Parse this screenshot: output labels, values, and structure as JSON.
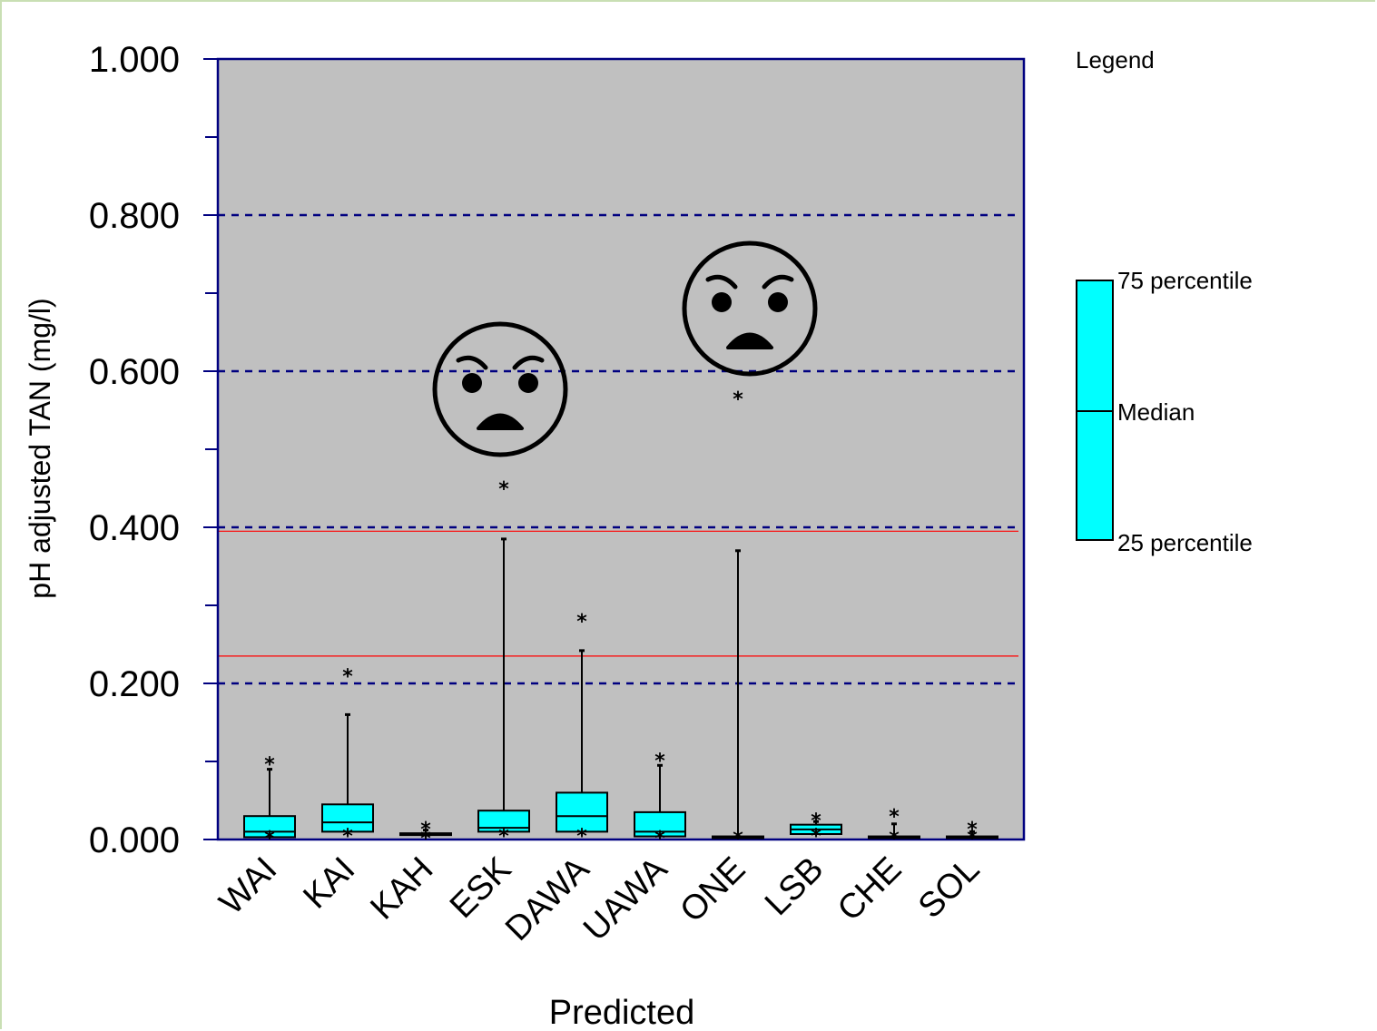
{
  "chart_data": {
    "type": "box",
    "title": "",
    "xlabel": "Predicted",
    "ylabel": "pH adjusted TAN (mg/l)",
    "ylim": [
      0,
      1.0
    ],
    "y_ticks": [
      "0.000",
      "0.200",
      "0.400",
      "0.600",
      "0.800",
      "1.000"
    ],
    "categories": [
      "WAI",
      "KAI",
      "KAH",
      "ESK",
      "DAWA",
      "UAWA",
      "ONE",
      "LSB",
      "CHE",
      "SOL"
    ],
    "boxes": [
      {
        "min": 0.0,
        "q1": 0.003,
        "median": 0.01,
        "q3": 0.03,
        "max": 0.09,
        "outliers": [
          0.097,
          0.0
        ]
      },
      {
        "min": 0.005,
        "q1": 0.01,
        "median": 0.022,
        "q3": 0.045,
        "max": 0.16,
        "outliers": [
          0.21,
          0.005
        ]
      },
      {
        "min": 0.003,
        "q1": 0.006,
        "median": 0.007,
        "q3": 0.008,
        "max": 0.012,
        "outliers": [
          0.014,
          0.002
        ]
      },
      {
        "min": 0.005,
        "q1": 0.01,
        "median": 0.015,
        "q3": 0.037,
        "max": 0.385,
        "outliers": [
          0.45,
          0.005
        ]
      },
      {
        "min": 0.005,
        "q1": 0.01,
        "median": 0.03,
        "q3": 0.06,
        "max": 0.242,
        "outliers": [
          0.28,
          0.005
        ]
      },
      {
        "min": 0.002,
        "q1": 0.004,
        "median": 0.01,
        "q3": 0.035,
        "max": 0.095,
        "outliers": [
          0.102,
          0.002
        ]
      },
      {
        "min": 0.001,
        "q1": 0.002,
        "median": 0.003,
        "q3": 0.004,
        "max": 0.37,
        "outliers": [
          0.565,
          0.0
        ]
      },
      {
        "min": 0.005,
        "q1": 0.007,
        "median": 0.013,
        "q3": 0.019,
        "max": 0.023,
        "outliers": [
          0.025,
          0.005
        ]
      },
      {
        "min": 0.002,
        "q1": 0.002,
        "median": 0.003,
        "q3": 0.004,
        "max": 0.02,
        "outliers": [
          0.03,
          0.0
        ]
      },
      {
        "min": 0.001,
        "q1": 0.002,
        "median": 0.003,
        "q3": 0.004,
        "max": 0.01,
        "outliers": [
          0.014,
          0.0
        ]
      }
    ],
    "dashed_gridlines": [
      0.2,
      0.4,
      0.6,
      0.8
    ],
    "reference_lines": [
      0.235,
      0.395
    ],
    "annotations": [
      {
        "type": "angry-face",
        "near_category": "ESK"
      },
      {
        "type": "angry-face",
        "near_category": "ONE"
      }
    ],
    "legend": {
      "title": "Legend",
      "placement": "right",
      "labels": [
        "75 percentile",
        "Median",
        "25 percentile"
      ]
    },
    "colors": {
      "plot_bg": "#c0c0c0",
      "box_fill": "#00ffff",
      "axis": "#000080",
      "gridline": "#000080",
      "reference_line": "#ff0000"
    }
  }
}
